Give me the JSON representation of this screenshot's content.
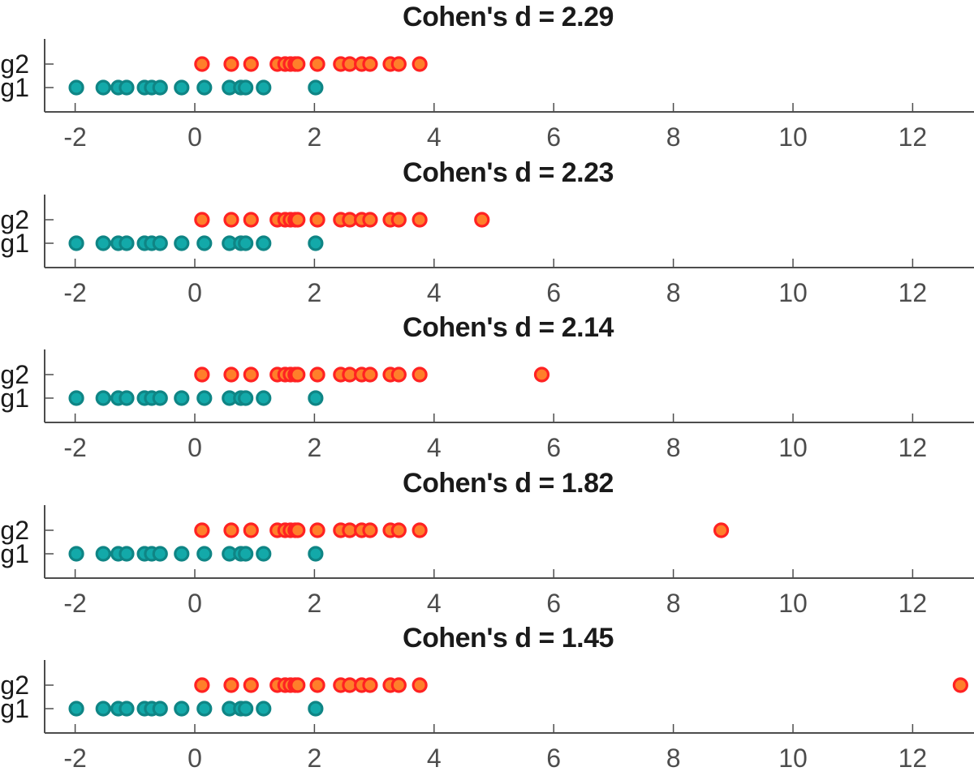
{
  "chart_data": [
    {
      "type": "scatter",
      "title": "Cohen's d = 2.29",
      "xlabel": "",
      "ylabel": "",
      "xlim": [
        -2.7,
        13
      ],
      "xticks": [
        -2,
        0,
        2,
        4,
        6,
        8,
        10,
        12
      ],
      "yticks": [
        "g1",
        "g2"
      ],
      "grid": false,
      "series": [
        {
          "name": "g1",
          "values": [
            -1.98,
            -1.53,
            -1.28,
            -1.14,
            -0.84,
            -0.72,
            -0.58,
            -0.22,
            0.16,
            0.58,
            0.77,
            0.85,
            1.15,
            2.02
          ]
        },
        {
          "name": "g2",
          "values": [
            0.12,
            0.61,
            0.94,
            1.38,
            1.51,
            1.6,
            1.68,
            1.72,
            2.05,
            2.44,
            2.59,
            2.79,
            2.93,
            3.27,
            3.41,
            3.76
          ]
        }
      ]
    },
    {
      "type": "scatter",
      "title": "Cohen's d = 2.23",
      "xlabel": "",
      "ylabel": "",
      "xlim": [
        -2.7,
        13
      ],
      "xticks": [
        -2,
        0,
        2,
        4,
        6,
        8,
        10,
        12
      ],
      "yticks": [
        "g1",
        "g2"
      ],
      "grid": false,
      "series": [
        {
          "name": "g1",
          "values": [
            -1.98,
            -1.53,
            -1.28,
            -1.14,
            -0.84,
            -0.72,
            -0.58,
            -0.22,
            0.16,
            0.58,
            0.77,
            0.85,
            1.15,
            2.02
          ]
        },
        {
          "name": "g2",
          "values": [
            0.12,
            0.61,
            0.94,
            1.38,
            1.51,
            1.6,
            1.68,
            1.72,
            2.05,
            2.44,
            2.59,
            2.79,
            2.93,
            3.27,
            3.41,
            3.76,
            4.8
          ]
        }
      ]
    },
    {
      "type": "scatter",
      "title": "Cohen's d = 2.14",
      "xlabel": "",
      "ylabel": "",
      "xlim": [
        -2.7,
        13
      ],
      "xticks": [
        -2,
        0,
        2,
        4,
        6,
        8,
        10,
        12
      ],
      "yticks": [
        "g1",
        "g2"
      ],
      "grid": false,
      "series": [
        {
          "name": "g1",
          "values": [
            -1.98,
            -1.53,
            -1.28,
            -1.14,
            -0.84,
            -0.72,
            -0.58,
            -0.22,
            0.16,
            0.58,
            0.77,
            0.85,
            1.15,
            2.02
          ]
        },
        {
          "name": "g2",
          "values": [
            0.12,
            0.61,
            0.94,
            1.38,
            1.51,
            1.6,
            1.68,
            1.72,
            2.05,
            2.44,
            2.59,
            2.79,
            2.93,
            3.27,
            3.41,
            3.76,
            5.8
          ]
        }
      ]
    },
    {
      "type": "scatter",
      "title": "Cohen's d = 1.82",
      "xlabel": "",
      "ylabel": "",
      "xlim": [
        -2.7,
        13
      ],
      "xticks": [
        -2,
        0,
        2,
        4,
        6,
        8,
        10,
        12
      ],
      "yticks": [
        "g1",
        "g2"
      ],
      "grid": false,
      "series": [
        {
          "name": "g1",
          "values": [
            -1.98,
            -1.53,
            -1.28,
            -1.14,
            -0.84,
            -0.72,
            -0.58,
            -0.22,
            0.16,
            0.58,
            0.77,
            0.85,
            1.15,
            2.02
          ]
        },
        {
          "name": "g2",
          "values": [
            0.12,
            0.61,
            0.94,
            1.38,
            1.51,
            1.6,
            1.68,
            1.72,
            2.05,
            2.44,
            2.59,
            2.79,
            2.93,
            3.27,
            3.41,
            3.76,
            8.8
          ]
        }
      ]
    },
    {
      "type": "scatter",
      "title": "Cohen's d = 1.45",
      "xlabel": "",
      "ylabel": "",
      "xlim": [
        -2.7,
        13
      ],
      "xticks": [
        -2,
        0,
        2,
        4,
        6,
        8,
        10,
        12
      ],
      "yticks": [
        "g1",
        "g2"
      ],
      "grid": false,
      "series": [
        {
          "name": "g1",
          "values": [
            -1.98,
            -1.53,
            -1.28,
            -1.14,
            -0.84,
            -0.72,
            -0.58,
            -0.22,
            0.16,
            0.58,
            0.77,
            0.85,
            1.15,
            2.02
          ]
        },
        {
          "name": "g2",
          "values": [
            0.12,
            0.61,
            0.94,
            1.38,
            1.51,
            1.6,
            1.68,
            1.72,
            2.05,
            2.44,
            2.59,
            2.79,
            2.93,
            3.27,
            3.41,
            3.76,
            12.8
          ]
        }
      ]
    }
  ],
  "colors": {
    "g1_fill": "#13a9a9",
    "g1_edge": "#0f8585",
    "g2_fill": "#ff7f2a",
    "g2_edge": "#ff2222",
    "axis": "#4d4d4d"
  }
}
